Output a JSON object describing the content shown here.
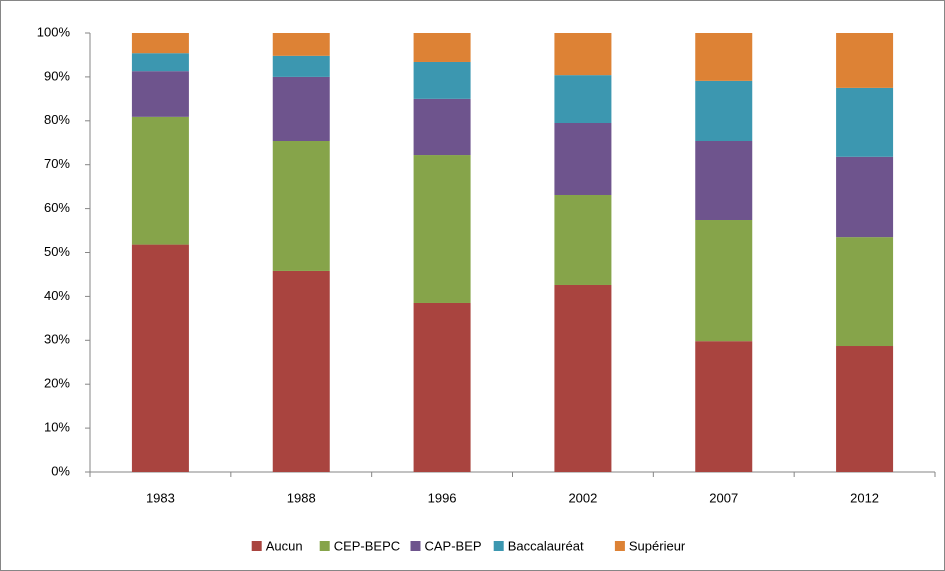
{
  "chart_data": {
    "type": "stacked_bar",
    "categories": [
      "1983",
      "1988",
      "1996",
      "2002",
      "2007",
      "2012"
    ],
    "series": [
      {
        "name": "Aucun",
        "color": "#a9443f",
        "values": [
          51.8,
          45.8,
          38.5,
          42.6,
          29.8,
          28.7
        ]
      },
      {
        "name": "CEP-BEPC",
        "color": "#86a44a",
        "values": [
          29.1,
          29.6,
          33.7,
          20.5,
          27.6,
          24.8
        ]
      },
      {
        "name": "CAP-BEP",
        "color": "#6e548d",
        "values": [
          10.4,
          14.6,
          12.8,
          16.4,
          18.0,
          18.3
        ]
      },
      {
        "name": "Baccalauréat",
        "color": "#3c97b0",
        "values": [
          4.1,
          4.8,
          8.4,
          10.9,
          13.7,
          15.7
        ]
      },
      {
        "name": "Supérieur",
        "color": "#dd8235",
        "values": [
          4.6,
          5.2,
          6.6,
          9.6,
          10.9,
          12.5
        ]
      }
    ],
    "ylim": [
      0,
      100
    ],
    "yticks": [
      {
        "value": 0,
        "label": "0%"
      },
      {
        "value": 10,
        "label": "10%"
      },
      {
        "value": 20,
        "label": "20%"
      },
      {
        "value": 30,
        "label": "30%"
      },
      {
        "value": 40,
        "label": "40%"
      },
      {
        "value": 50,
        "label": "50%"
      },
      {
        "value": 60,
        "label": "60%"
      },
      {
        "value": 70,
        "label": "70%"
      },
      {
        "value": 80,
        "label": "80%"
      },
      {
        "value": 90,
        "label": "90%"
      },
      {
        "value": 100,
        "label": "100%"
      }
    ],
    "grid": false,
    "legend": "bottom"
  }
}
